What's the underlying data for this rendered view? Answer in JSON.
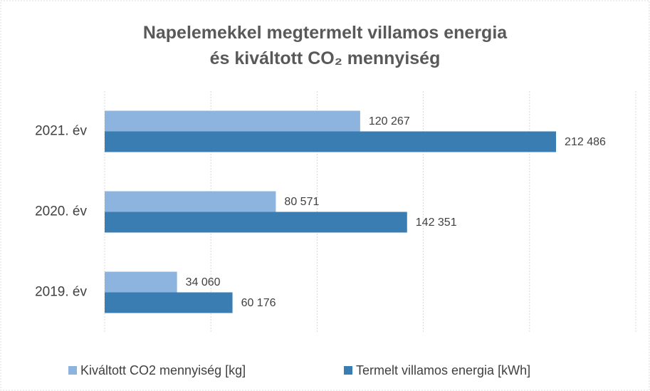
{
  "chart_data": {
    "type": "bar",
    "orientation": "horizontal",
    "title": "Napelemekkel megtermelt villamos energia és kiváltott CO₂ mennyiség",
    "categories": [
      "2019. év",
      "2020. év",
      "2021. év"
    ],
    "series": [
      {
        "name": "Kiváltott CO2 mennyiség [kg]",
        "color": "#8db4df",
        "values": [
          34060,
          80571,
          120267
        ],
        "value_labels": [
          "34 060",
          "80 571",
          "120 267"
        ]
      },
      {
        "name": "Termelt villamos energia [kWh]",
        "color": "#3a7db2",
        "values": [
          60176,
          142351,
          212486
        ],
        "value_labels": [
          "60 176",
          "142 351",
          "212 486"
        ]
      }
    ],
    "xlim": [
      0,
      250000
    ],
    "xticks": [
      0,
      50000,
      100000,
      150000,
      200000,
      250000
    ],
    "grid": true,
    "legend": "bottom"
  }
}
